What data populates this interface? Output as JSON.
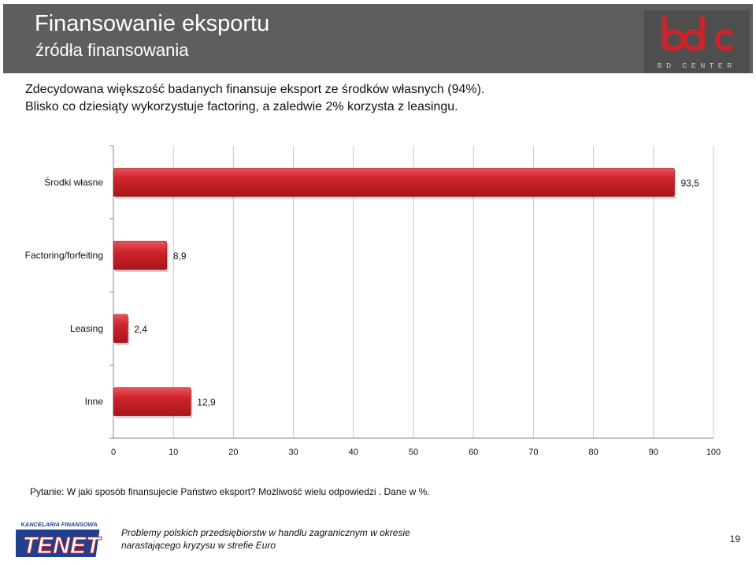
{
  "header": {
    "title": "Finansowanie eksportu",
    "subtitle": "źródła finansowania",
    "logo_text": "BD CENTER"
  },
  "intro": {
    "line1": "Zdecydowana większość badanych finansuje eksport ze środków własnych (94%).",
    "line2": "Blisko co dziesiąty wykorzystuje factoring, a zaledwie 2% korzysta z leasingu."
  },
  "question": "Pytanie: W jaki sposób finansujecie Państwo eksport? Możliwość wielu odpowiedzi . Dane w %.",
  "footer": {
    "logo_top": "KANCELARIA FINANSOWA",
    "logo_main": "TENET",
    "line1": "Problemy polskich przedsiębiorstw w handlu zagranicznym  w okresie",
    "line2": "narastającego kryzysu w strefie Euro",
    "page_number": "19"
  },
  "colors": {
    "header_bg": "#5e5e5e",
    "bar": "#c8262d",
    "logo_red": "#c8262d",
    "tenet_blue": "#1f3f8f"
  },
  "chart_data": {
    "type": "bar",
    "orientation": "horizontal",
    "categories": [
      "Środki własne",
      "Factoring/forfeiting",
      "Leasing",
      "Inne"
    ],
    "values": [
      93.5,
      8.9,
      2.4,
      12.9
    ],
    "value_labels": [
      "93,5",
      "8,9",
      "2,4",
      "12,9"
    ],
    "xlim": [
      0,
      100
    ],
    "x_ticks": [
      "0",
      "10",
      "20",
      "30",
      "40",
      "50",
      "60",
      "70",
      "80",
      "90",
      "100"
    ],
    "grid": true,
    "legend": "none",
    "title": "",
    "xlabel": "",
    "ylabel": ""
  }
}
